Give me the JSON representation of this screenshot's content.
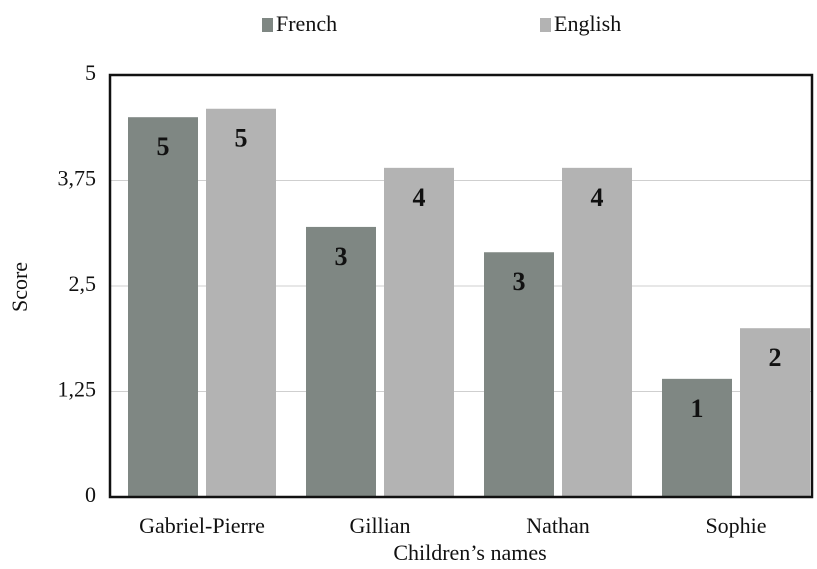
{
  "chart_data": {
    "type": "bar",
    "categories": [
      "Gabriel-Pierre",
      "Gillian",
      "Nathan",
      "Sophie"
    ],
    "series": [
      {
        "name": "French",
        "color": "#7f8783",
        "values": [
          4.5,
          3.2,
          2.9,
          1.4
        ],
        "value_labels": [
          "5",
          "3",
          "3",
          "1"
        ]
      },
      {
        "name": "English",
        "color": "#b3b3b3",
        "values": [
          4.6,
          3.9,
          3.9,
          2.0
        ],
        "value_labels": [
          "5",
          "4",
          "4",
          "2"
        ]
      }
    ],
    "ylim": [
      0,
      5
    ],
    "yticks": [
      0,
      {
        "value": 1.25,
        "label": "1,25"
      },
      {
        "value": 2.5,
        "label": "2,5"
      },
      {
        "value": 3.75,
        "label": "3,75"
      },
      5
    ],
    "ylabel": "Score",
    "xlabel": "Children’s names",
    "grid": true,
    "legend": "top"
  }
}
